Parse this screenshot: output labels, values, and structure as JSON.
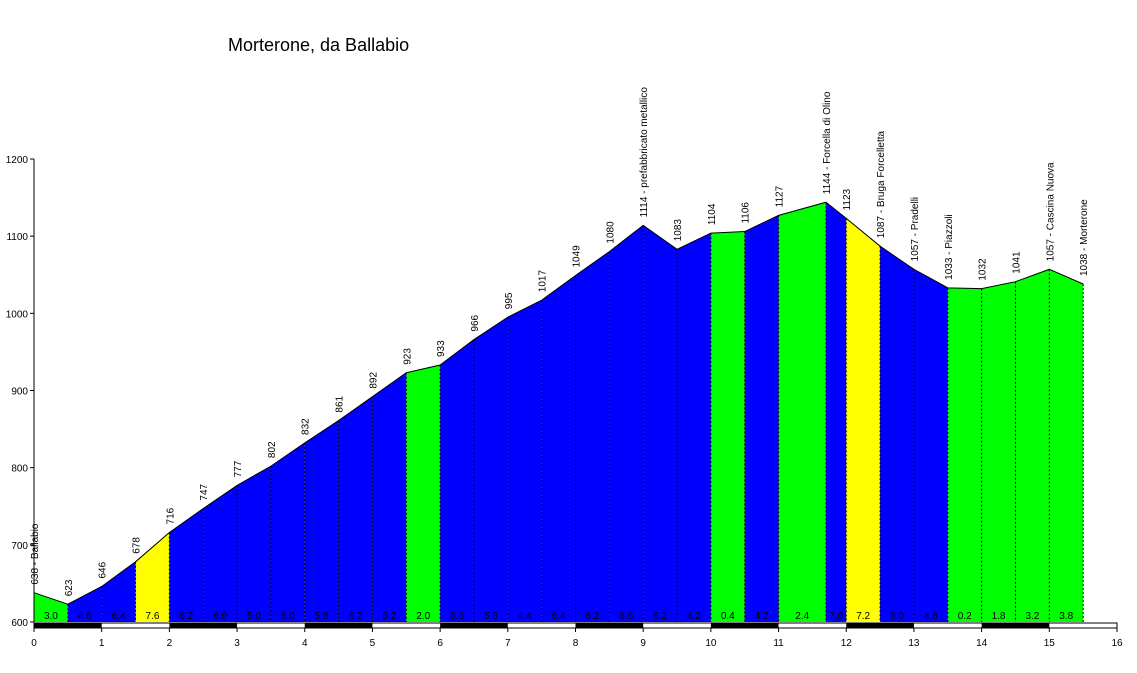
{
  "chart_data": {
    "type": "area",
    "title": "Morterone, da Ballabio",
    "xlim": [
      0,
      16
    ],
    "ylim": [
      600,
      1200
    ],
    "x_ticks": [
      0,
      1,
      2,
      3,
      4,
      5,
      6,
      7,
      8,
      9,
      10,
      11,
      12,
      13,
      14,
      15,
      16
    ],
    "y_ticks": [
      600,
      700,
      800,
      900,
      1000,
      1100,
      1200
    ],
    "points": [
      {
        "x": 0.0,
        "y": 638,
        "label": "638 - Ballabio"
      },
      {
        "x": 0.5,
        "y": 623,
        "label": "623"
      },
      {
        "x": 1.0,
        "y": 646,
        "label": "646"
      },
      {
        "x": 1.5,
        "y": 678,
        "label": "678"
      },
      {
        "x": 2.0,
        "y": 716,
        "label": "716"
      },
      {
        "x": 2.5,
        "y": 747,
        "label": "747"
      },
      {
        "x": 3.0,
        "y": 777,
        "label": "777"
      },
      {
        "x": 3.5,
        "y": 802,
        "label": "802"
      },
      {
        "x": 4.0,
        "y": 832,
        "label": "832"
      },
      {
        "x": 4.5,
        "y": 861,
        "label": "861"
      },
      {
        "x": 5.0,
        "y": 892,
        "label": "892"
      },
      {
        "x": 5.5,
        "y": 923,
        "label": "923"
      },
      {
        "x": 6.0,
        "y": 933,
        "label": "933"
      },
      {
        "x": 6.5,
        "y": 966,
        "label": "966"
      },
      {
        "x": 7.0,
        "y": 995,
        "label": "995"
      },
      {
        "x": 7.5,
        "y": 1017,
        "label": "1017"
      },
      {
        "x": 8.0,
        "y": 1049,
        "label": "1049"
      },
      {
        "x": 8.5,
        "y": 1080,
        "label": "1080"
      },
      {
        "x": 9.0,
        "y": 1114,
        "label": "1114 - prefabbricato metallico"
      },
      {
        "x": 9.5,
        "y": 1083,
        "label": "1083"
      },
      {
        "x": 10.0,
        "y": 1104,
        "label": "1104"
      },
      {
        "x": 10.5,
        "y": 1106,
        "label": "1106"
      },
      {
        "x": 11.0,
        "y": 1127,
        "label": "1127"
      },
      {
        "x": 11.7,
        "y": 1144,
        "label": "1144 - Forcella di Olino"
      },
      {
        "x": 12.0,
        "y": 1123,
        "label": "1123"
      },
      {
        "x": 12.5,
        "y": 1087,
        "label": "1087 - Bruga Forcelletta"
      },
      {
        "x": 13.0,
        "y": 1057,
        "label": "1057 - Pradelli"
      },
      {
        "x": 13.5,
        "y": 1033,
        "label": "1033 - Piazzoli"
      },
      {
        "x": 14.0,
        "y": 1032,
        "label": "1032"
      },
      {
        "x": 14.5,
        "y": 1041,
        "label": "1041"
      },
      {
        "x": 15.0,
        "y": 1057,
        "label": "1057 - Cascina Nuova"
      },
      {
        "x": 15.5,
        "y": 1038,
        "label": "1038 - Morterone"
      }
    ],
    "segments": [
      {
        "from": 0.0,
        "to": 0.5,
        "gradient": "3.0",
        "color": "#00ff00"
      },
      {
        "from": 0.5,
        "to": 1.0,
        "gradient": "4.6",
        "color": "#0000ff"
      },
      {
        "from": 1.0,
        "to": 1.5,
        "gradient": "6.4",
        "color": "#0000ff"
      },
      {
        "from": 1.5,
        "to": 2.0,
        "gradient": "7.6",
        "color": "#ffff00"
      },
      {
        "from": 2.0,
        "to": 2.5,
        "gradient": "6.2",
        "color": "#0000ff"
      },
      {
        "from": 2.5,
        "to": 3.0,
        "gradient": "6.0",
        "color": "#0000ff"
      },
      {
        "from": 3.0,
        "to": 3.5,
        "gradient": "5.0",
        "color": "#0000ff"
      },
      {
        "from": 3.5,
        "to": 4.0,
        "gradient": "6.0",
        "color": "#0000ff"
      },
      {
        "from": 4.0,
        "to": 4.5,
        "gradient": "5.8",
        "color": "#0000ff"
      },
      {
        "from": 4.5,
        "to": 5.0,
        "gradient": "6.2",
        "color": "#0000ff"
      },
      {
        "from": 5.0,
        "to": 5.5,
        "gradient": "6.2",
        "color": "#0000ff"
      },
      {
        "from": 5.5,
        "to": 6.0,
        "gradient": "2.0",
        "color": "#00ff00"
      },
      {
        "from": 6.0,
        "to": 6.5,
        "gradient": "6.6",
        "color": "#0000ff"
      },
      {
        "from": 6.5,
        "to": 7.0,
        "gradient": "5.8",
        "color": "#0000ff"
      },
      {
        "from": 7.0,
        "to": 7.5,
        "gradient": "4.4",
        "color": "#0000ff"
      },
      {
        "from": 7.5,
        "to": 8.0,
        "gradient": "6.4",
        "color": "#0000ff"
      },
      {
        "from": 8.0,
        "to": 8.5,
        "gradient": "6.2",
        "color": "#0000ff"
      },
      {
        "from": 8.5,
        "to": 9.0,
        "gradient": "6.8",
        "color": "#0000ff"
      },
      {
        "from": 9.0,
        "to": 9.5,
        "gradient": "6.2",
        "color": "#0000ff"
      },
      {
        "from": 9.5,
        "to": 10.0,
        "gradient": "4.2",
        "color": "#0000ff"
      },
      {
        "from": 10.0,
        "to": 10.5,
        "gradient": "0.4",
        "color": "#00ff00"
      },
      {
        "from": 10.5,
        "to": 11.0,
        "gradient": "4.2",
        "color": "#0000ff"
      },
      {
        "from": 11.0,
        "to": 11.7,
        "gradient": "2.4",
        "color": "#00ff00"
      },
      {
        "from": 11.7,
        "to": 12.0,
        "gradient": "7.0",
        "color": "#0000ff"
      },
      {
        "from": 12.0,
        "to": 12.5,
        "gradient": "7.2",
        "color": "#ffff00"
      },
      {
        "from": 12.5,
        "to": 13.0,
        "gradient": "6.0",
        "color": "#0000ff"
      },
      {
        "from": 13.0,
        "to": 13.5,
        "gradient": "4.8",
        "color": "#0000ff"
      },
      {
        "from": 13.5,
        "to": 14.0,
        "gradient": "0.2",
        "color": "#00ff00"
      },
      {
        "from": 14.0,
        "to": 14.5,
        "gradient": "1.8",
        "color": "#00ff00"
      },
      {
        "from": 14.5,
        "to": 15.0,
        "gradient": "3.2",
        "color": "#00ff00"
      },
      {
        "from": 15.0,
        "to": 15.5,
        "gradient": "3.8",
        "color": "#00ff00"
      }
    ],
    "grid": false,
    "legend": "none"
  }
}
